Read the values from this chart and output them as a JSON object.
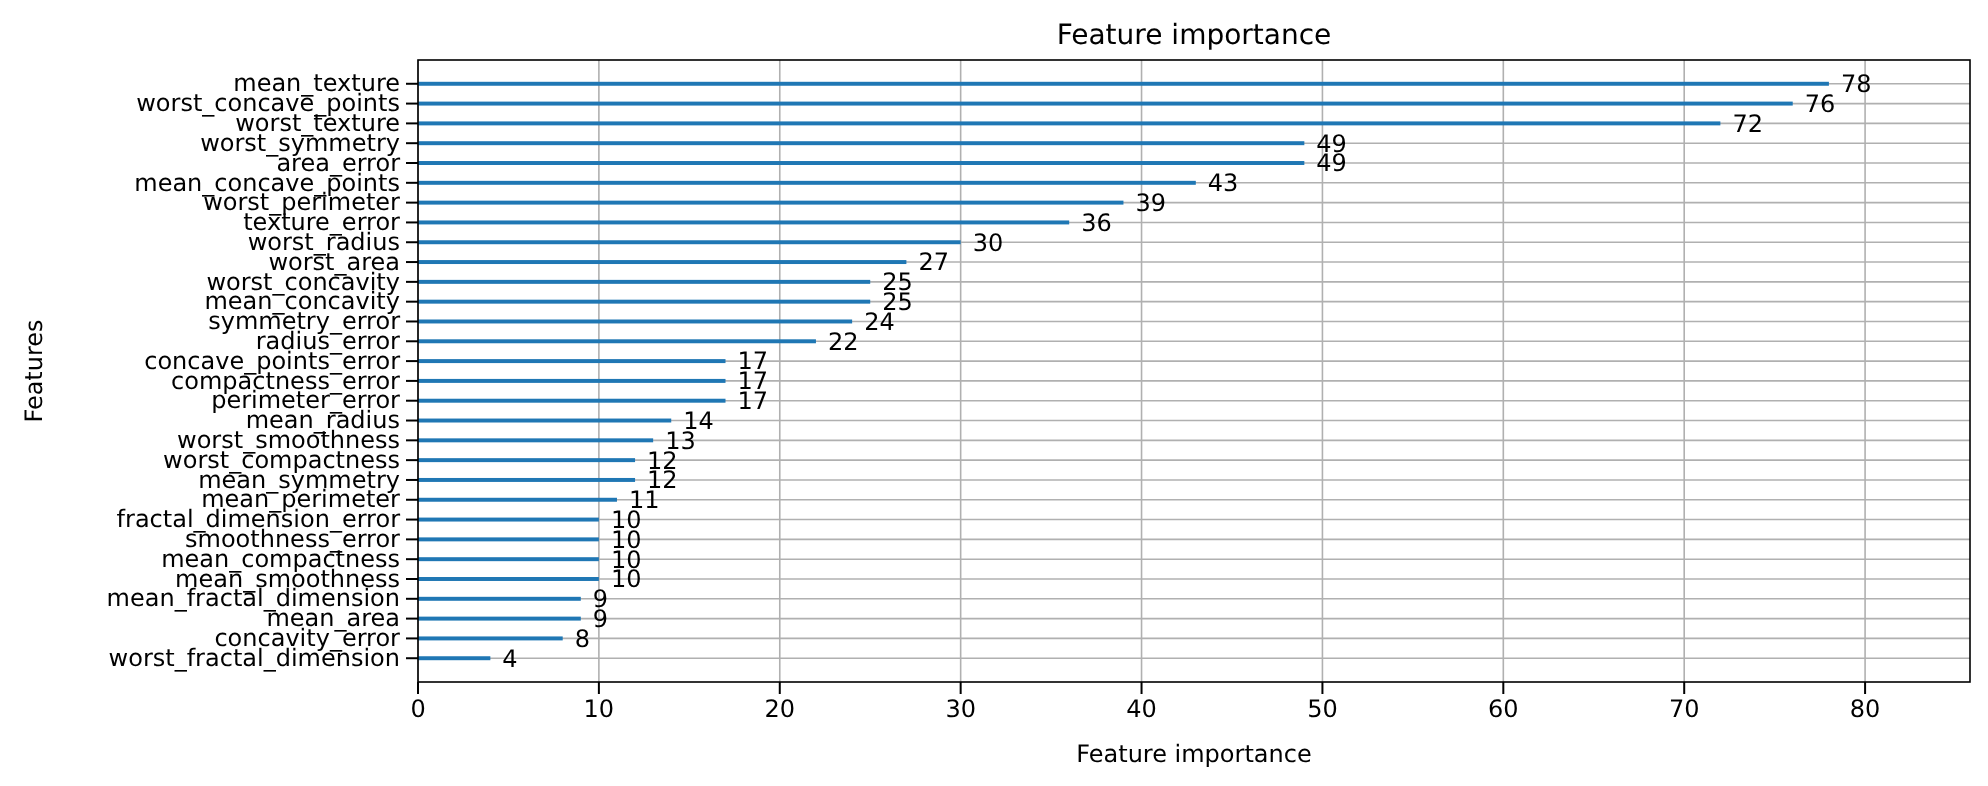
{
  "chart_data": {
    "type": "bar",
    "orientation": "horizontal",
    "title": "Feature importance",
    "xlabel": "Feature importance",
    "ylabel": "Features",
    "categories": [
      "mean_texture",
      "worst_concave_points",
      "worst_texture",
      "worst_symmetry",
      "area_error",
      "mean_concave_points",
      "worst_perimeter",
      "texture_error",
      "worst_radius",
      "worst_area",
      "worst_concavity",
      "mean_concavity",
      "symmetry_error",
      "radius_error",
      "concave_points_error",
      "compactness_error",
      "perimeter_error",
      "mean_radius",
      "worst_smoothness",
      "worst_compactness",
      "mean_symmetry",
      "mean_perimeter",
      "fractal_dimension_error",
      "smoothness_error",
      "mean_compactness",
      "mean_smoothness",
      "mean_fractal_dimension",
      "mean_area",
      "concavity_error",
      "worst_fractal_dimension"
    ],
    "values": [
      78,
      76,
      72,
      49,
      49,
      43,
      39,
      36,
      30,
      27,
      25,
      25,
      24,
      22,
      17,
      17,
      17,
      14,
      13,
      12,
      12,
      11,
      10,
      10,
      10,
      10,
      9,
      9,
      8,
      4
    ],
    "color": "#1f77b4",
    "xlim": [
      0,
      85.8
    ],
    "xticks": [
      0,
      10,
      20,
      30,
      40,
      50,
      60,
      70,
      80
    ],
    "grid": true,
    "data_labels": true
  }
}
